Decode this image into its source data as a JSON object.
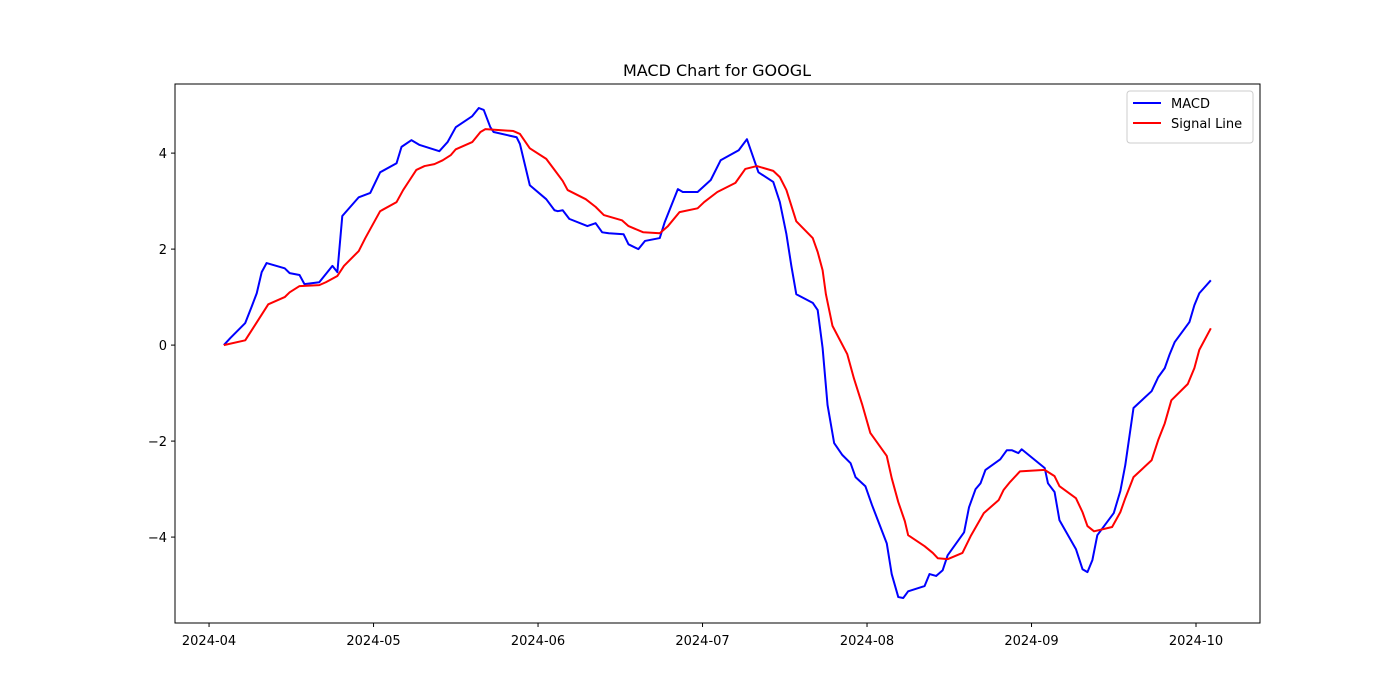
{
  "chart_data": {
    "type": "line",
    "title": "MACD Chart for GOOGL",
    "xlim": [
      3.793,
      10.389
    ],
    "xticks": [
      {
        "value": 4,
        "label": "2024-04"
      },
      {
        "value": 5,
        "label": "2024-05"
      },
      {
        "value": 6,
        "label": "2024-06"
      },
      {
        "value": 7,
        "label": "2024-07"
      },
      {
        "value": 8,
        "label": "2024-08"
      },
      {
        "value": 9,
        "label": "2024-09"
      },
      {
        "value": 10,
        "label": "2024-10"
      }
    ],
    "ylim": [
      -5.79,
      5.44
    ],
    "yticks": [
      {
        "value": -4,
        "label": "−4"
      },
      {
        "value": -2,
        "label": "−2"
      },
      0,
      2,
      4
    ],
    "grid": false,
    "legend": "upper right",
    "series": [
      {
        "name": "MACD",
        "color": "#0000ff",
        "x": [
          4.09,
          4.13,
          4.22,
          4.26,
          4.29,
          4.32,
          4.35,
          4.46,
          4.49,
          4.55,
          4.58,
          4.67,
          4.75,
          4.78,
          4.81,
          4.91,
          4.98,
          5.04,
          5.14,
          5.17,
          5.23,
          5.28,
          5.4,
          5.45,
          5.5,
          5.6,
          5.64,
          5.67,
          5.71,
          5.73,
          5.87,
          5.89,
          5.95,
          6.05,
          6.1,
          6.12,
          6.15,
          6.19,
          6.3,
          6.35,
          6.39,
          6.43,
          6.52,
          6.55,
          6.61,
          6.65,
          6.74,
          6.77,
          6.85,
          6.88,
          6.97,
          7.05,
          7.11,
          7.22,
          7.27,
          7.34,
          7.43,
          7.47,
          7.51,
          7.54,
          7.57,
          7.67,
          7.7,
          7.73,
          7.76,
          7.8,
          7.85,
          7.9,
          7.93,
          7.99,
          8.03,
          8.12,
          8.15,
          8.19,
          8.22,
          8.25,
          8.35,
          8.38,
          8.42,
          8.46,
          8.49,
          8.59,
          8.62,
          8.66,
          8.69,
          8.72,
          8.81,
          8.85,
          8.88,
          8.92,
          8.94,
          9.08,
          9.1,
          9.14,
          9.17,
          9.27,
          9.31,
          9.34,
          9.37,
          9.4,
          9.5,
          9.54,
          9.57,
          9.62,
          9.73,
          9.77,
          9.81,
          9.84,
          9.87,
          9.96,
          9.99,
          10.02,
          10.09
        ],
        "values": [
          0,
          0.15,
          0.46,
          0.81,
          1.08,
          1.52,
          1.71,
          1.6,
          1.5,
          1.46,
          1.27,
          1.31,
          1.65,
          1.52,
          2.69,
          3.08,
          3.17,
          3.6,
          3.79,
          4.13,
          4.27,
          4.17,
          4.04,
          4.23,
          4.54,
          4.77,
          4.94,
          4.9,
          4.54,
          4.44,
          4.33,
          4.19,
          3.33,
          3.04,
          2.81,
          2.79,
          2.81,
          2.63,
          2.48,
          2.54,
          2.35,
          2.33,
          2.31,
          2.1,
          2.0,
          2.17,
          2.23,
          2.56,
          3.25,
          3.19,
          3.19,
          3.44,
          3.85,
          4.06,
          4.29,
          3.6,
          3.4,
          2.98,
          2.31,
          1.65,
          1.06,
          0.88,
          0.73,
          -0.06,
          -1.25,
          -2.04,
          -2.29,
          -2.46,
          -2.75,
          -2.94,
          -3.33,
          -4.13,
          -4.77,
          -5.25,
          -5.27,
          -5.13,
          -5.02,
          -4.77,
          -4.81,
          -4.69,
          -4.38,
          -3.9,
          -3.38,
          -3.0,
          -2.88,
          -2.6,
          -2.38,
          -2.19,
          -2.19,
          -2.25,
          -2.17,
          -2.56,
          -2.88,
          -3.06,
          -3.65,
          -4.25,
          -4.67,
          -4.73,
          -4.48,
          -3.96,
          -3.5,
          -3.04,
          -2.5,
          -1.31,
          -0.96,
          -0.67,
          -0.48,
          -0.19,
          0.06,
          0.48,
          0.83,
          1.08,
          1.35
        ]
      },
      {
        "name": "Signal Line",
        "color": "#ff0000",
        "x": [
          4.09,
          4.22,
          4.28,
          4.36,
          4.46,
          4.49,
          4.55,
          4.67,
          4.71,
          4.78,
          4.82,
          4.91,
          4.95,
          5.04,
          5.14,
          5.18,
          5.22,
          5.26,
          5.31,
          5.37,
          5.42,
          5.47,
          5.5,
          5.6,
          5.65,
          5.68,
          5.85,
          5.89,
          5.95,
          6.05,
          6.1,
          6.15,
          6.18,
          6.29,
          6.35,
          6.4,
          6.51,
          6.55,
          6.64,
          6.74,
          6.79,
          6.86,
          6.97,
          7.01,
          7.09,
          7.2,
          7.26,
          7.33,
          7.43,
          7.47,
          7.51,
          7.57,
          7.67,
          7.7,
          7.73,
          7.75,
          7.79,
          7.88,
          7.92,
          7.97,
          8.02,
          8.12,
          8.15,
          8.19,
          8.23,
          8.25,
          8.35,
          8.4,
          8.43,
          8.49,
          8.58,
          8.63,
          8.71,
          8.8,
          8.83,
          8.87,
          8.93,
          9.08,
          9.14,
          9.17,
          9.27,
          9.31,
          9.34,
          9.38,
          9.49,
          9.54,
          9.57,
          9.62,
          9.73,
          9.77,
          9.81,
          9.85,
          9.95,
          9.99,
          10.02,
          10.09
        ],
        "values": [
          0,
          0.1,
          0.42,
          0.85,
          1.0,
          1.1,
          1.23,
          1.25,
          1.31,
          1.44,
          1.65,
          1.96,
          2.23,
          2.79,
          2.98,
          3.23,
          3.44,
          3.65,
          3.73,
          3.77,
          3.85,
          3.96,
          4.08,
          4.23,
          4.44,
          4.5,
          4.46,
          4.4,
          4.1,
          3.88,
          3.65,
          3.42,
          3.23,
          3.04,
          2.88,
          2.71,
          2.6,
          2.48,
          2.35,
          2.33,
          2.48,
          2.77,
          2.85,
          2.98,
          3.19,
          3.38,
          3.67,
          3.73,
          3.63,
          3.5,
          3.23,
          2.58,
          2.23,
          1.94,
          1.56,
          1.06,
          0.4,
          -0.19,
          -0.69,
          -1.23,
          -1.83,
          -2.31,
          -2.77,
          -3.27,
          -3.67,
          -3.96,
          -4.19,
          -4.33,
          -4.44,
          -4.46,
          -4.33,
          -3.98,
          -3.5,
          -3.23,
          -3.02,
          -2.85,
          -2.63,
          -2.6,
          -2.73,
          -2.94,
          -3.19,
          -3.48,
          -3.77,
          -3.88,
          -3.79,
          -3.48,
          -3.19,
          -2.75,
          -2.4,
          -1.98,
          -1.63,
          -1.15,
          -0.81,
          -0.48,
          -0.1,
          0.35
        ]
      }
    ]
  }
}
